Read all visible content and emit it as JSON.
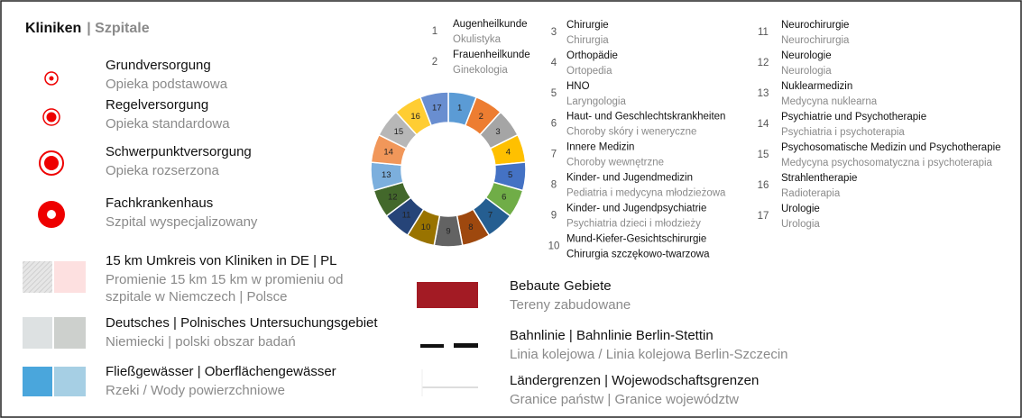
{
  "legend": {
    "title": {
      "de": "Kliniken",
      "pl": "| Szpitale"
    },
    "hospitals": [
      {
        "de": "Grundversorgung",
        "pl": "Opieka podstawowa"
      },
      {
        "de": "Regelversorgung",
        "pl": "Opieka standardowa"
      },
      {
        "de": "Schwerpunktversorgung",
        "pl": "Opieka rozserzona"
      },
      {
        "de": "Fachkrankenhaus",
        "pl": "Szpital wyspecjalizowany"
      }
    ],
    "areas": [
      {
        "de": "15 km Umkreis von Kliniken in DE | PL",
        "pl": "Promienie 15 km 15 km w promieniu od",
        "pl2": "szpitale w Niemczech | Polsce"
      },
      {
        "de": "Deutsches | Polnisches Untersuchungsgebiet",
        "pl": "Niemiecki | polski obszar badań"
      },
      {
        "de": "Fließgewässer | Oberflächengewässer",
        "pl": "Rzeki / Wody powierzchniowe"
      }
    ],
    "other": [
      {
        "de": "Bebaute Gebiete",
        "pl": "Tereny zabudowane"
      },
      {
        "de": "Bahnlinie | Bahnlinie Berlin-Stettin",
        "pl": "Linia kolejowa / Linia kolejowa Berlin-Szczecin"
      },
      {
        "de": "Ländergrenzen | Wojewodschaftsgrenzen",
        "pl": "Granice państw | Granice województw"
      }
    ],
    "specialties": [
      {
        "number": "1",
        "de": "Augenheilkunde",
        "pl": "Okulistyka",
        "color": "#5b9bd5"
      },
      {
        "number": "2",
        "de": "Frauenheilkunde",
        "pl": "Ginekologia",
        "color": "#ed7d31"
      },
      {
        "number": "3",
        "de": "Chirurgie",
        "pl": "Chirurgia",
        "color": "#a5a5a5"
      },
      {
        "number": "4",
        "de": "Orthopädie",
        "pl": "Ortopedia",
        "color": "#ffc000"
      },
      {
        "number": "5",
        "de": "HNO",
        "pl": "Laryngologia",
        "color": "#4472c4"
      },
      {
        "number": "6",
        "de": "Haut- und Geschlechtskrankheiten",
        "pl": "Choroby skóry i weneryczne",
        "color": "#70ad47"
      },
      {
        "number": "7",
        "de": "Innere Medizin",
        "pl": "Choroby wewnętrzne",
        "color": "#255e91"
      },
      {
        "number": "8",
        "de": "Kinder- und Jugendmedizin",
        "pl": "Pediatria i medycyna młodzieżowa",
        "color": "#9e480e"
      },
      {
        "number": "9",
        "de": "Kinder- und Jugendpsychiatrie",
        "pl": "Psychiatria dzieci i młodzieży",
        "color": "#636363"
      },
      {
        "number": "10",
        "de": "Mund-Kiefer-Gesichtschirurgie",
        "pl": "Chirurgia szczękowo-twarzowa",
        "color": "#997300"
      },
      {
        "number": "11",
        "de": "Neurochirurgie",
        "pl": "Neurochirurgia",
        "color": "#264478"
      },
      {
        "number": "12",
        "de": "Neurologie",
        "pl": "Neurologia",
        "color": "#43682b"
      },
      {
        "number": "13",
        "de": "Nuklearmedizin",
        "pl": "Medycyna nuklearna",
        "color": "#7cafdd"
      },
      {
        "number": "14",
        "de": "Psychiatrie und Psychotherapie",
        "pl": "Psychiatria i psychoterapia",
        "color": "#f1975a"
      },
      {
        "number": "15",
        "de": "Psychosomatische Medizin und Psychotherapie",
        "pl": "Medycyna psychosomatyczna i psychoterapia",
        "color": "#b7b7b7"
      },
      {
        "number": "16",
        "de": "Strahlentherapie",
        "pl": "Radioterapia",
        "color": "#ffcd33"
      },
      {
        "number": "17",
        "de": "Urologie",
        "pl": "Urologia",
        "color": "#698ed0"
      }
    ]
  }
}
